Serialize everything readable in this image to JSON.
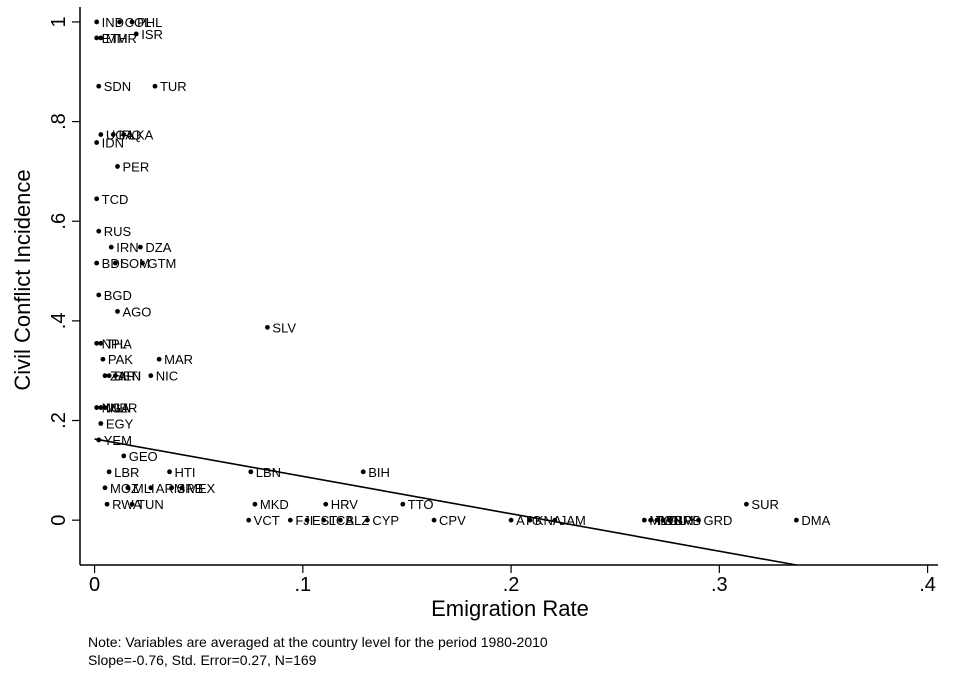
{
  "chart_data": {
    "type": "scatter",
    "xlabel": "Emigration Rate",
    "ylabel": "Civil Conflict Incidence",
    "xlim": [
      -0.007,
      0.405
    ],
    "ylim": [
      -0.09,
      1.03
    ],
    "x_ticks": [
      0,
      0.1,
      0.2,
      0.3,
      0.4
    ],
    "x_tick_labels": [
      "0",
      ".1",
      ".2",
      ".3",
      ".4"
    ],
    "y_ticks": [
      0,
      0.2,
      0.4,
      0.6,
      0.8,
      1
    ],
    "y_tick_labels": [
      "0",
      ".2",
      ".4",
      ".6",
      ".8",
      "1"
    ],
    "grid": false,
    "fit_line": {
      "x": [
        0.0,
        0.337
      ],
      "y": [
        0.163,
        -0.09
      ]
    },
    "points": [
      {
        "label": "IND",
        "x": 0.001,
        "y": 1.0
      },
      {
        "label": "COL",
        "x": 0.012,
        "y": 1.0
      },
      {
        "label": "PHL",
        "x": 0.018,
        "y": 1.0
      },
      {
        "label": "ISR",
        "x": 0.02,
        "y": 0.976
      },
      {
        "label": "ETH",
        "x": 0.001,
        "y": 0.968
      },
      {
        "label": "MMR",
        "x": 0.003,
        "y": 0.968
      },
      {
        "label": "SDN",
        "x": 0.002,
        "y": 0.871
      },
      {
        "label": "TUR",
        "x": 0.029,
        "y": 0.871
      },
      {
        "label": "UGA",
        "x": 0.003,
        "y": 0.774
      },
      {
        "label": "IRQ",
        "x": 0.009,
        "y": 0.774
      },
      {
        "label": "LKA",
        "x": 0.014,
        "y": 0.774
      },
      {
        "label": "IDN",
        "x": 0.001,
        "y": 0.758
      },
      {
        "label": "PER",
        "x": 0.011,
        "y": 0.71
      },
      {
        "label": "TCD",
        "x": 0.001,
        "y": 0.645
      },
      {
        "label": "RUS",
        "x": 0.002,
        "y": 0.58
      },
      {
        "label": "IRN",
        "x": 0.008,
        "y": 0.548
      },
      {
        "label": "DZA",
        "x": 0.022,
        "y": 0.548
      },
      {
        "label": "BDI",
        "x": 0.001,
        "y": 0.516
      },
      {
        "label": "SOM",
        "x": 0.01,
        "y": 0.516
      },
      {
        "label": "GTM",
        "x": 0.023,
        "y": 0.516
      },
      {
        "label": "BGD",
        "x": 0.002,
        "y": 0.452
      },
      {
        "label": "AGO",
        "x": 0.011,
        "y": 0.419
      },
      {
        "label": "SLV",
        "x": 0.083,
        "y": 0.387
      },
      {
        "label": "NPL",
        "x": 0.001,
        "y": 0.355
      },
      {
        "label": "THA",
        "x": 0.003,
        "y": 0.355
      },
      {
        "label": "PAK",
        "x": 0.004,
        "y": 0.323
      },
      {
        "label": "MAR",
        "x": 0.031,
        "y": 0.323
      },
      {
        "label": "ZAF",
        "x": 0.005,
        "y": 0.29
      },
      {
        "label": "SEN",
        "x": 0.007,
        "y": 0.29
      },
      {
        "label": "HTI",
        "x": 0.01,
        "y": 0.29
      },
      {
        "label": "NIC",
        "x": 0.027,
        "y": 0.29
      },
      {
        "label": "NGA",
        "x": 0.001,
        "y": 0.226
      },
      {
        "label": "MLI",
        "x": 0.003,
        "y": 0.226
      },
      {
        "label": "NER",
        "x": 0.005,
        "y": 0.226
      },
      {
        "label": "EGY",
        "x": 0.003,
        "y": 0.194
      },
      {
        "label": "YEM",
        "x": 0.002,
        "y": 0.161
      },
      {
        "label": "GEO",
        "x": 0.014,
        "y": 0.129
      },
      {
        "label": "LBR",
        "x": 0.007,
        "y": 0.097
      },
      {
        "label": "HTI",
        "x": 0.036,
        "y": 0.097
      },
      {
        "label": "LBN",
        "x": 0.075,
        "y": 0.097
      },
      {
        "label": "BIH",
        "x": 0.129,
        "y": 0.097
      },
      {
        "label": "MOZ",
        "x": 0.005,
        "y": 0.065
      },
      {
        "label": "MLI",
        "x": 0.016,
        "y": 0.065
      },
      {
        "label": "ARM",
        "x": 0.027,
        "y": 0.065
      },
      {
        "label": "SRB",
        "x": 0.037,
        "y": 0.065
      },
      {
        "label": "MEX",
        "x": 0.042,
        "y": 0.065
      },
      {
        "label": "RWA",
        "x": 0.006,
        "y": 0.032
      },
      {
        "label": "TUN",
        "x": 0.018,
        "y": 0.032
      },
      {
        "label": "MKD",
        "x": 0.077,
        "y": 0.032
      },
      {
        "label": "HRV",
        "x": 0.111,
        "y": 0.032
      },
      {
        "label": "TTO",
        "x": 0.148,
        "y": 0.032
      },
      {
        "label": "SUR",
        "x": 0.313,
        "y": 0.032
      },
      {
        "label": "VCT",
        "x": 0.074,
        "y": 0.0
      },
      {
        "label": "FJI",
        "x": 0.094,
        "y": 0.0
      },
      {
        "label": "EST",
        "x": 0.102,
        "y": 0.0
      },
      {
        "label": "LCA",
        "x": 0.11,
        "y": 0.0
      },
      {
        "label": "BLZ",
        "x": 0.118,
        "y": 0.0
      },
      {
        "label": "CYP",
        "x": 0.131,
        "y": 0.0
      },
      {
        "label": "CPV",
        "x": 0.163,
        "y": 0.0
      },
      {
        "label": "ATG",
        "x": 0.2,
        "y": 0.0
      },
      {
        "label": "KNA",
        "x": 0.209,
        "y": 0.0
      },
      {
        "label": "JAM",
        "x": 0.221,
        "y": 0.0
      },
      {
        "label": "MLT",
        "x": 0.264,
        "y": 0.0
      },
      {
        "label": "TON",
        "x": 0.267,
        "y": 0.0
      },
      {
        "label": "WSM",
        "x": 0.27,
        "y": 0.0
      },
      {
        "label": "GUY",
        "x": 0.273,
        "y": 0.0
      },
      {
        "label": "BRB",
        "x": 0.276,
        "y": 0.0
      },
      {
        "label": "GRD",
        "x": 0.29,
        "y": 0.0
      },
      {
        "label": "DMA",
        "x": 0.337,
        "y": 0.0
      }
    ]
  },
  "notes": {
    "line1": "Note: Variables are averaged at the country level for the period 1980-2010",
    "line2": "Slope=-0.76, Std. Error=0.27, N=169"
  }
}
